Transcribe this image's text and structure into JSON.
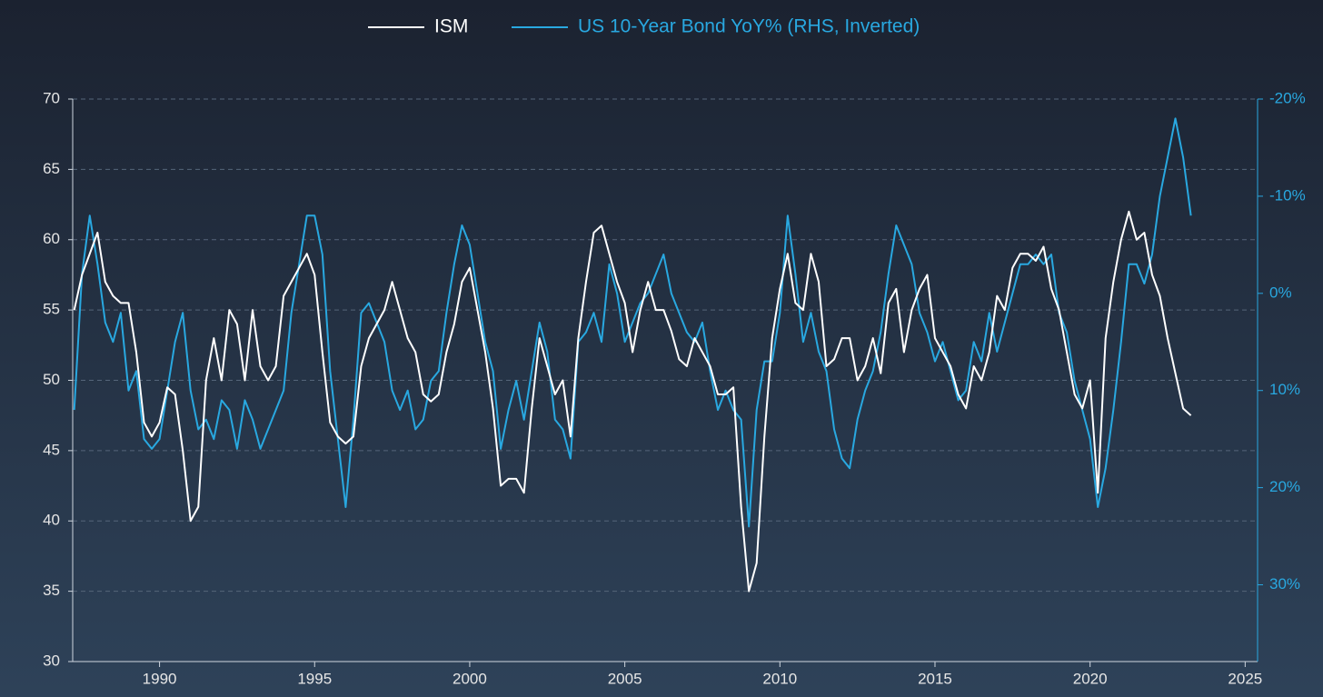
{
  "chart_data": {
    "type": "line",
    "series": [
      {
        "name": "ISM",
        "color": "#ffffff",
        "axis": "y",
        "values": [
          55,
          57.5,
          59,
          60.5,
          57,
          56,
          55.5,
          55.5,
          52,
          47,
          46,
          47,
          49.5,
          49,
          45,
          40,
          41,
          50,
          53,
          50,
          55,
          54,
          50,
          55,
          51,
          50,
          51,
          56,
          57,
          58,
          59,
          57.5,
          52,
          47,
          46,
          45.5,
          46,
          51,
          53,
          54,
          55,
          57,
          55,
          53,
          52,
          49,
          48.5,
          49,
          52,
          54,
          57,
          58,
          55,
          52,
          48,
          42.5,
          43,
          43,
          42,
          48,
          53,
          51,
          49,
          50,
          46,
          53,
          57,
          60.5,
          61,
          59,
          57,
          55.5,
          52,
          55,
          57,
          55,
          55,
          53.5,
          51.5,
          51,
          53,
          52,
          51,
          49,
          49,
          49.5,
          41,
          35,
          37,
          46,
          53,
          56.5,
          59,
          55.5,
          55,
          59,
          57,
          51,
          51.5,
          53,
          53,
          50,
          51,
          53,
          50.5,
          55.5,
          56.5,
          52,
          55,
          56.5,
          57.5,
          53,
          52,
          51,
          49,
          48,
          51,
          50,
          52,
          56,
          55,
          58,
          59,
          59,
          58.5,
          59.5,
          56.5,
          55,
          52,
          49,
          48,
          50,
          42,
          53,
          57,
          60,
          62,
          60,
          60.5,
          57.5,
          56,
          53,
          50.5,
          48,
          47.5
        ]
      },
      {
        "name": "US 10-Year Bond YoY% (RHS, Inverted)",
        "color": "#29a8e0",
        "axis": "y2",
        "values": [
          12,
          -2,
          -8,
          -3,
          3,
          5,
          2,
          10,
          8,
          15,
          16,
          15,
          10,
          5,
          2,
          10,
          14,
          13,
          15,
          11,
          12,
          16,
          11,
          13,
          16,
          14,
          12,
          10,
          2,
          -3,
          -8,
          -8,
          -4,
          8,
          15,
          22,
          13,
          2,
          1,
          3,
          5,
          10,
          12,
          10,
          14,
          13,
          9,
          8,
          2,
          -3,
          -7,
          -5,
          0,
          5,
          8,
          16,
          12,
          9,
          13,
          8,
          3,
          6,
          13,
          14,
          17,
          5,
          4,
          2,
          5,
          -3,
          0,
          5,
          3,
          1,
          0,
          -2,
          -4,
          0,
          2,
          4,
          5,
          3,
          8,
          12,
          10,
          12,
          13,
          24,
          12,
          7,
          7,
          2,
          -8,
          -2,
          5,
          2,
          6,
          8,
          14,
          17,
          18,
          13,
          10,
          8,
          4,
          -2,
          -7,
          -5,
          -3,
          2,
          4,
          7,
          5,
          8,
          11,
          10,
          5,
          7,
          2,
          6,
          3,
          0,
          -3,
          -3,
          -4,
          -3,
          -4,
          2,
          4,
          9,
          12,
          15,
          22,
          18,
          12,
          5,
          -3,
          -3,
          -1,
          -4,
          -10,
          -14,
          -18,
          -14,
          -8
        ]
      }
    ],
    "x": [
      1987.25,
      1987.5,
      1987.75,
      1988,
      1988.25,
      1988.5,
      1988.75,
      1989,
      1989.25,
      1989.5,
      1989.75,
      1990,
      1990.25,
      1990.5,
      1990.75,
      1991,
      1991.25,
      1991.5,
      1991.75,
      1992,
      1992.25,
      1992.5,
      1992.75,
      1993,
      1993.25,
      1993.5,
      1993.75,
      1994,
      1994.25,
      1994.5,
      1994.75,
      1995,
      1995.25,
      1995.5,
      1995.75,
      1996,
      1996.25,
      1996.5,
      1996.75,
      1997,
      1997.25,
      1997.5,
      1997.75,
      1998,
      1998.25,
      1998.5,
      1998.75,
      1999,
      1999.25,
      1999.5,
      1999.75,
      2000,
      2000.25,
      2000.5,
      2000.75,
      2001,
      2001.25,
      2001.5,
      2001.75,
      2002,
      2002.25,
      2002.5,
      2002.75,
      2003,
      2003.25,
      2003.5,
      2003.75,
      2004,
      2004.25,
      2004.5,
      2004.75,
      2005,
      2005.25,
      2005.5,
      2005.75,
      2006,
      2006.25,
      2006.5,
      2006.75,
      2007,
      2007.25,
      2007.5,
      2007.75,
      2008,
      2008.25,
      2008.5,
      2008.75,
      2009,
      2009.25,
      2009.5,
      2009.75,
      2010,
      2010.25,
      2010.5,
      2010.75,
      2011,
      2011.25,
      2011.5,
      2011.75,
      2012,
      2012.25,
      2012.5,
      2012.75,
      2013,
      2013.25,
      2013.5,
      2013.75,
      2014,
      2014.25,
      2014.5,
      2014.75,
      2015,
      2015.25,
      2015.5,
      2015.75,
      2016,
      2016.25,
      2016.5,
      2016.75,
      2017,
      2017.25,
      2017.5,
      2017.75,
      2018,
      2018.25,
      2018.5,
      2018.75,
      2019,
      2019.25,
      2019.5,
      2019.75,
      2020,
      2020.25,
      2020.5,
      2020.75,
      2021,
      2021.25,
      2021.5,
      2021.75,
      2022,
      2022.25,
      2022.5,
      2022.75,
      2023,
      2023.25
    ],
    "xlim": [
      1987.2,
      2025.4
    ],
    "xticks": [
      1990,
      1995,
      2000,
      2005,
      2010,
      2015,
      2020,
      2025
    ],
    "ylim": [
      30,
      70
    ],
    "yticks": [
      30,
      35,
      40,
      45,
      50,
      55,
      60,
      65,
      70
    ],
    "y2lim": [
      37.9,
      -20
    ],
    "y2ticks": [
      {
        "value": -20,
        "label": "-20%"
      },
      {
        "value": -10,
        "label": "-10%"
      },
      {
        "value": 0,
        "label": "0%"
      },
      {
        "value": 10,
        "label": "10%"
      },
      {
        "value": 20,
        "label": "20%"
      },
      {
        "value": 30,
        "label": "30%"
      }
    ],
    "grid": true
  }
}
